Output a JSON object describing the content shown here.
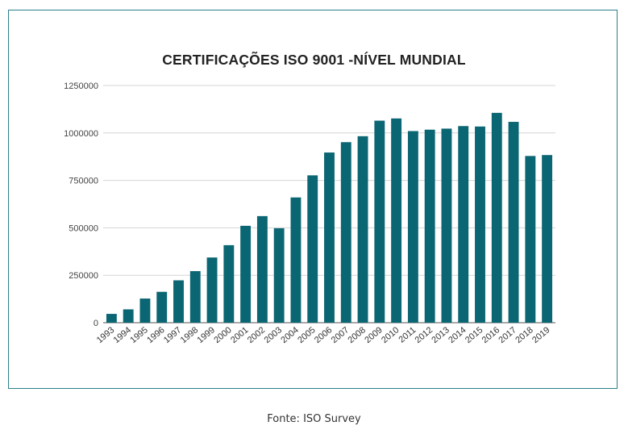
{
  "chart_data": {
    "type": "bar",
    "title": "CERTIFICAÇÕES ISO 9001 -NÍVEL MUNDIAL",
    "categories": [
      "1993",
      "1994",
      "1995",
      "1996",
      "1997",
      "1998",
      "1999",
      "2000",
      "2001",
      "2002",
      "2003",
      "2004",
      "2005",
      "2006",
      "2007",
      "2008",
      "2009",
      "2010",
      "2011",
      "2012",
      "2013",
      "2014",
      "2015",
      "2016",
      "2017",
      "2018",
      "2019"
    ],
    "values": [
      46571,
      70364,
      127349,
      162701,
      223299,
      271847,
      343643,
      408631,
      510616,
      561747,
      497919,
      660132,
      776608,
      896929,
      951486,
      982832,
      1064785,
      1076525,
      1009845,
      1017279,
      1022877,
      1036321,
      1033936,
      1105937,
      1058504,
      878664,
      883521
    ],
    "yticks": [
      0,
      250000,
      500000,
      750000,
      1000000,
      1250000
    ],
    "ylim": [
      0,
      1250000
    ],
    "grid": true,
    "bar_color": "#0b6673",
    "xlabel": "",
    "ylabel": ""
  },
  "caption": "Fonte: ISO Survey"
}
